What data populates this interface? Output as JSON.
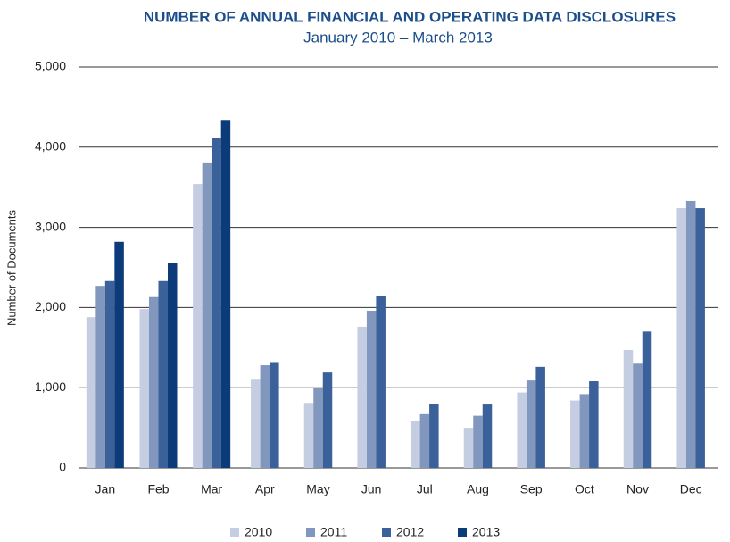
{
  "chart_data": {
    "type": "bar",
    "title": "NUMBER OF ANNUAL FINANCIAL AND OPERATING DATA DISCLOSURES",
    "subtitle": "January 2010 – March 2013",
    "y_label": "Number of Documents",
    "categories": [
      "Jan",
      "Feb",
      "Mar",
      "Apr",
      "May",
      "Jun",
      "Jul",
      "Aug",
      "Sep",
      "Oct",
      "Nov",
      "Dec"
    ],
    "series": [
      {
        "name": "2010",
        "color": "#c5cde2",
        "values": [
          1880,
          1980,
          3540,
          1100,
          810,
          1760,
          580,
          500,
          940,
          840,
          1470,
          3240
        ]
      },
      {
        "name": "2011",
        "color": "#8297be",
        "values": [
          2270,
          2130,
          3810,
          1280,
          1000,
          1960,
          670,
          650,
          1090,
          920,
          1300,
          3330
        ]
      },
      {
        "name": "2012",
        "color": "#3a6199",
        "values": [
          2330,
          2330,
          4110,
          1320,
          1190,
          2140,
          800,
          790,
          1260,
          1080,
          1700,
          3240
        ]
      },
      {
        "name": "2013",
        "color": "#0c3b7a",
        "values": [
          2820,
          2550,
          4340,
          null,
          null,
          null,
          null,
          null,
          null,
          null,
          null,
          null
        ]
      }
    ],
    "ylim": [
      0,
      5000
    ],
    "yticks": [
      0,
      {
        "value": 1000,
        "label": "1,000"
      },
      {
        "value": 2000,
        "label": "2,000"
      },
      {
        "value": 3000,
        "label": "3,000"
      },
      {
        "value": 4000,
        "label": "4,000"
      },
      {
        "value": 5000,
        "label": "5,000"
      }
    ],
    "grid": true
  }
}
